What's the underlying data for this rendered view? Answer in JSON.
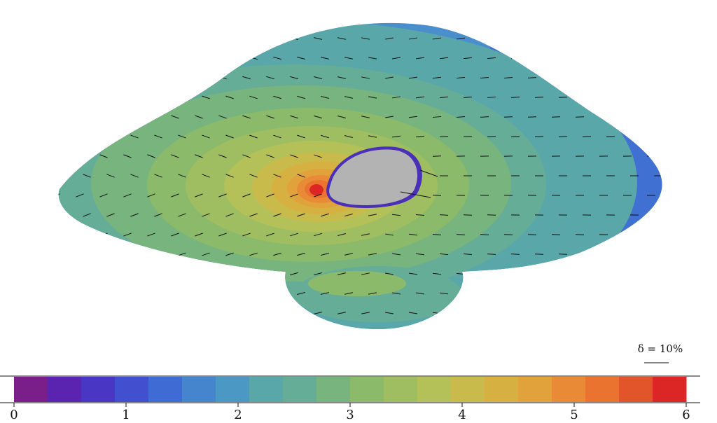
{
  "colorbar": {
    "ticks": [
      "0",
      "1",
      "2",
      "3",
      "4",
      "5",
      "6"
    ],
    "min": 0,
    "max": 6,
    "levels": 20,
    "colors": [
      "#7a1f8a",
      "#5a24b0",
      "#4a36c4",
      "#4050cf",
      "#3f6bd4",
      "#4485cd",
      "#4c98c5",
      "#5aa7aa",
      "#66ad98",
      "#78b47e",
      "#8bba6b",
      "#9fbe62",
      "#b3c158",
      "#c8bb4c",
      "#d6b142",
      "#e1a23c",
      "#e98b36",
      "#ea7330",
      "#e2552b",
      "#dc2626"
    ]
  },
  "field": {
    "obstacle_color": "#b3b3b3"
  },
  "scale_bar": {
    "label": "δ = 10%"
  }
}
